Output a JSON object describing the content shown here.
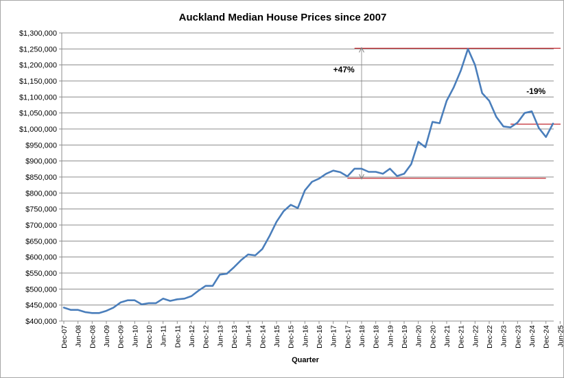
{
  "chart_data": {
    "type": "line",
    "title": "Auckland Median House Prices since 2007",
    "xlabel": "Quarter",
    "ylabel": "",
    "ylim": [
      400000,
      1300000
    ],
    "ytick_step": 50000,
    "grid": "horizontal",
    "legend": "none",
    "series_color": "#4a7ebb",
    "annotation_color": "#c0262c",
    "x_tick_labels": [
      "Dec-07",
      "Jun-08",
      "Dec-08",
      "Jun-09",
      "Dec-09",
      "Jun-10",
      "Dec-10",
      "Jun-11",
      "Dec-11",
      "Jun-12",
      "Dec-12",
      "Jun-13",
      "Dec-13",
      "Jun-14",
      "Dec-14",
      "Jun-15",
      "Dec-15",
      "Jun-16",
      "Dec-16",
      "Jun-17",
      "Dec-17",
      "Jun-18",
      "Dec-18",
      "Jun-19",
      "Dec-19",
      "Jun-20",
      "Dec-20",
      "Jun-21",
      "Dec-21",
      "Jun-22",
      "Dec-22",
      "Jun-23",
      "Dec-23",
      "Jun-24",
      "Dec-24",
      "Jun-25"
    ],
    "y_tick_labels": [
      "$400,000",
      "$450,000",
      "$500,000",
      "$550,000",
      "$600,000",
      "$650,000",
      "$700,000",
      "$750,000",
      "$800,000",
      "$850,000",
      "$900,000",
      "$950,000",
      "$1,000,000",
      "$1,050,000",
      "$1,100,000",
      "$1,150,000",
      "$1,200,000",
      "$1,250,000",
      "$1,300,000"
    ],
    "series": [
      {
        "values": [
          442000,
          435000,
          435000,
          428000,
          425000,
          425000,
          432000,
          442000,
          458000,
          465000,
          465000,
          452000,
          456000,
          456000,
          470000,
          463000,
          468000,
          470000,
          478000,
          495000,
          510000,
          510000,
          545000,
          548000,
          568000,
          590000,
          608000,
          605000,
          625000,
          665000,
          710000,
          743000,
          763000,
          753000,
          808000,
          835000,
          845000,
          860000,
          870000,
          865000,
          852000,
          876000,
          876000,
          866000,
          866000,
          860000,
          876000,
          853000,
          860000,
          890000,
          960000,
          943000,
          1022000,
          1018000,
          1088000,
          1130000,
          1183000,
          1250000,
          1200000,
          1112000,
          1088000,
          1038000,
          1008000,
          1005000,
          1020000,
          1050000,
          1055000,
          1003000,
          975000,
          1017000
        ]
      }
    ],
    "reference_lines": [
      {
        "value": 1252000,
        "from_index": 41,
        "to_index": 74
      },
      {
        "value": 846000,
        "from_index": 40,
        "to_index": 68
      },
      {
        "value": 1015000,
        "from_index": 63,
        "to_index": 74
      }
    ],
    "annotations": [
      {
        "text": "+47%",
        "arrow_index": 42,
        "from_value": 846000,
        "to_value": 1252000,
        "label_index": 39.5,
        "label_value": 1185000
      },
      {
        "text": "-19%",
        "arrow_index": 71,
        "from_value": 1252000,
        "to_value": 1015000,
        "label_index": 66.6,
        "label_value": 1118000
      }
    ]
  }
}
